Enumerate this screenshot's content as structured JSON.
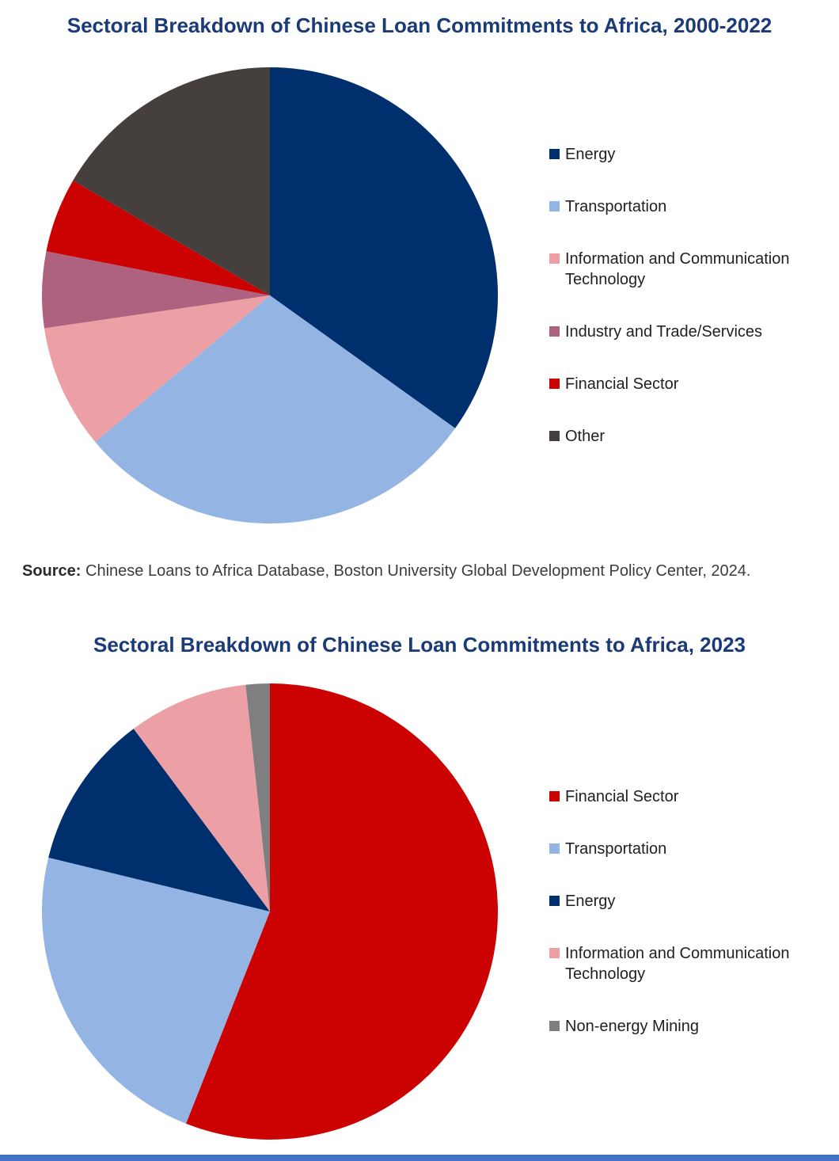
{
  "page": {
    "background": "#ffffff",
    "title_color": "#1b3b78",
    "footer_bar_color": "#4472c4"
  },
  "source": {
    "label": "Source:",
    "text": " Chinese Loans to Africa Database, Boston University Global Development Policy Center, 2024."
  },
  "chart_data": [
    {
      "type": "pie",
      "title": "Sectoral Breakdown of Chinese Loan Commitments to Africa, 2000-2022",
      "legend_position": "right",
      "start_angle_deg": 0,
      "direction": "clockwise",
      "values_note": "percent of total, estimated from slice angles; no numeric labels shown in image",
      "slices": [
        {
          "label": "Energy",
          "value_pct": 34.9,
          "color": "#002f6e"
        },
        {
          "label": "Transportation",
          "value_pct": 29.0,
          "color": "#94b4e3"
        },
        {
          "label": "Information and Communication Technology",
          "value_pct": 8.8,
          "color": "#ec9fa4"
        },
        {
          "label": "Industry and Trade/Services",
          "value_pct": 5.4,
          "color": "#af6180"
        },
        {
          "label": "Financial Sector",
          "value_pct": 5.3,
          "color": "#cc0101"
        },
        {
          "label": "Other",
          "value_pct": 16.6,
          "color": "#453f3e"
        }
      ]
    },
    {
      "type": "pie",
      "title": "Sectoral Breakdown of Chinese Loan Commitments to Africa, 2023",
      "legend_position": "right",
      "start_angle_deg": 0,
      "direction": "clockwise",
      "values_note": "percent of total, estimated from slice angles; no numeric labels shown in image",
      "slices": [
        {
          "label": "Financial Sector",
          "value_pct": 56.0,
          "color": "#cc0101"
        },
        {
          "label": "Transportation",
          "value_pct": 22.8,
          "color": "#94b4e3"
        },
        {
          "label": "Energy",
          "value_pct": 11.0,
          "color": "#002f6e"
        },
        {
          "label": "Information and Communication Technology",
          "value_pct": 8.5,
          "color": "#ec9fa4"
        },
        {
          "label": "Non-energy Mining",
          "value_pct": 1.7,
          "color": "#7f7f7f"
        }
      ]
    }
  ]
}
